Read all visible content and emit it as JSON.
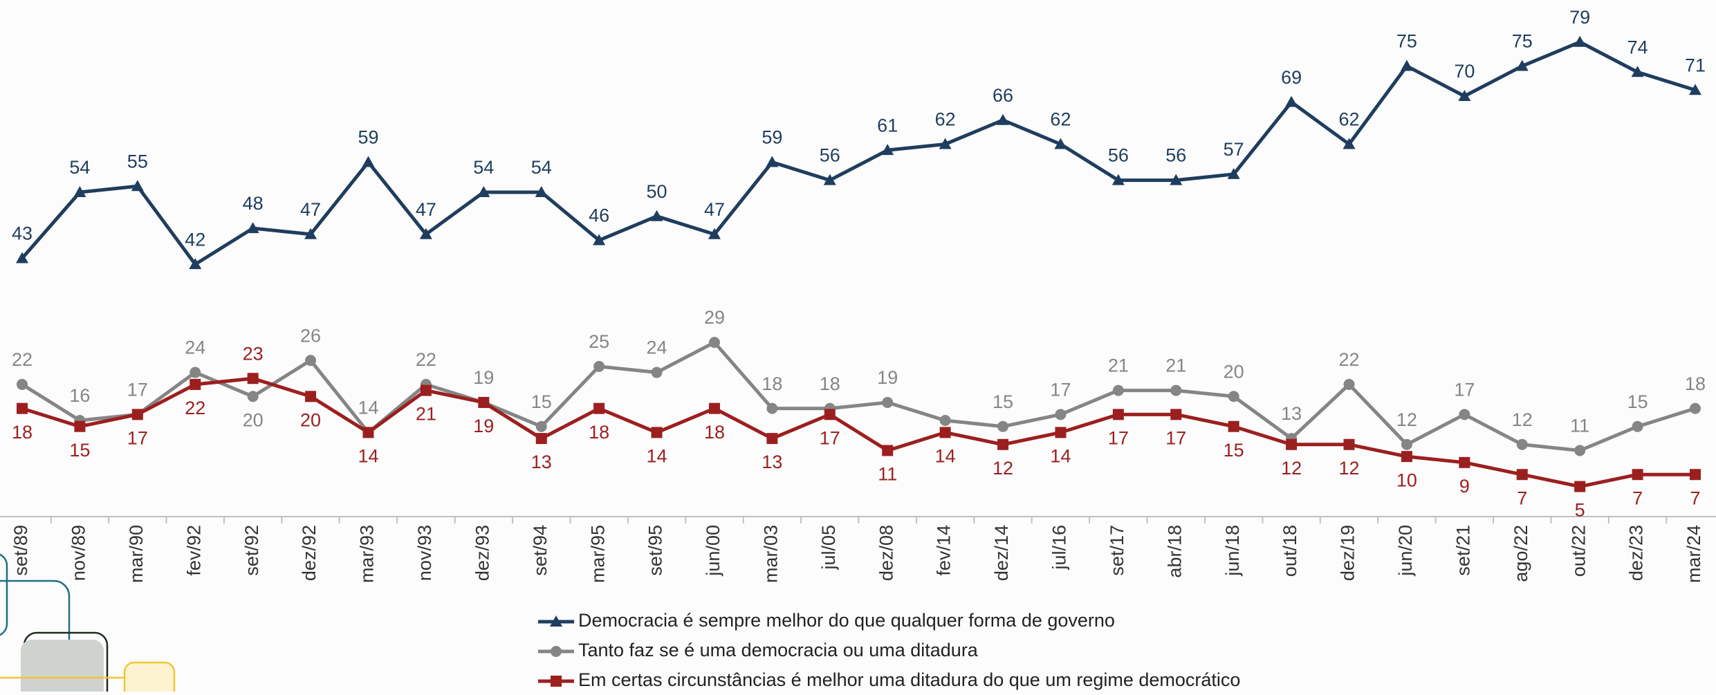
{
  "chart_data": {
    "type": "line",
    "categories": [
      "set/89",
      "nov/89",
      "mar/90",
      "fev/92",
      "set/92",
      "dez/92",
      "mar/93",
      "nov/93",
      "dez/93",
      "set/94",
      "mar/95",
      "set/95",
      "jun/00",
      "mar/03",
      "jul/05",
      "dez/08",
      "fev/14",
      "dez/14",
      "jul/16",
      "set/17",
      "abr/18",
      "jun/18",
      "out/18",
      "dez/19",
      "jun/20",
      "set/21",
      "ago/22",
      "out/22",
      "dez/23",
      "mar/24"
    ],
    "series": [
      {
        "name": "Democracia é sempre melhor do que qualquer forma de governo",
        "color": "#1f3d5e",
        "marker": "triangle",
        "values": [
          43,
          54,
          55,
          42,
          48,
          47,
          59,
          47,
          54,
          54,
          46,
          50,
          47,
          59,
          56,
          61,
          62,
          66,
          62,
          56,
          56,
          57,
          69,
          62,
          75,
          70,
          75,
          79,
          74,
          71
        ]
      },
      {
        "name": "Tanto faz se é uma democracia ou uma ditadura",
        "color": "#858585",
        "marker": "circle",
        "values": [
          22,
          16,
          17,
          24,
          20,
          26,
          14,
          22,
          19,
          15,
          25,
          24,
          29,
          18,
          18,
          19,
          16,
          15,
          17,
          21,
          21,
          20,
          13,
          22,
          12,
          17,
          12,
          11,
          15,
          18
        ],
        "value_labels": [
          "22",
          "16",
          "17",
          "24",
          "20",
          "26",
          "14",
          "22",
          "19",
          "15",
          "25",
          "24",
          "29",
          "18",
          "18",
          "19",
          null,
          "15",
          "17",
          "21",
          "21",
          "20",
          "13",
          "22",
          "12",
          "17",
          "12",
          "11",
          "15",
          "18"
        ]
      },
      {
        "name": "Em certas circunstâncias é melhor uma ditadura do que um regime democrático",
        "color": "#9c1f1f",
        "marker": "square",
        "values": [
          18,
          15,
          17,
          22,
          23,
          20,
          14,
          21,
          19,
          13,
          18,
          14,
          18,
          13,
          17,
          11,
          14,
          12,
          14,
          17,
          17,
          15,
          12,
          12,
          10,
          9,
          7,
          5,
          7,
          7
        ]
      }
    ],
    "ylim": [
      0,
      86
    ]
  }
}
